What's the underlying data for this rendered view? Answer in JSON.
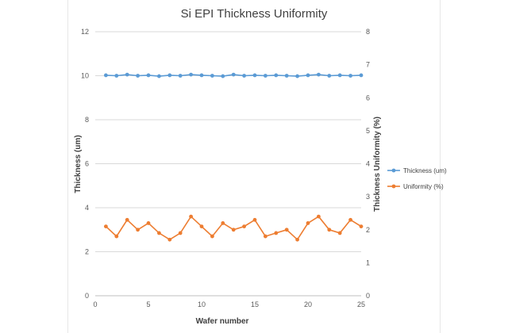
{
  "chart_data": {
    "type": "line",
    "title": "Si EPI Thickness Uniformity",
    "xlabel": "Wafer number",
    "ylabel": "Thickness (um)",
    "y2label": "Thickness Uniformity (%)",
    "xlim": [
      0,
      25
    ],
    "ylim": [
      0,
      12
    ],
    "y2lim": [
      0,
      8
    ],
    "xticks": [
      0,
      5,
      10,
      15,
      20,
      25
    ],
    "yticks": [
      0,
      2,
      4,
      6,
      8,
      10,
      12
    ],
    "y2ticks": [
      0,
      1,
      2,
      3,
      4,
      5,
      6,
      7,
      8
    ],
    "grid": "horizontal",
    "legend_position": "right",
    "x": [
      1,
      2,
      3,
      4,
      5,
      6,
      7,
      8,
      9,
      10,
      11,
      12,
      13,
      14,
      15,
      16,
      17,
      18,
      19,
      20,
      21,
      22,
      23,
      24,
      25
    ],
    "series": [
      {
        "name": "Thickness (um)",
        "axis": "left",
        "color": "#5b9bd5",
        "values": [
          10.02,
          10.0,
          10.05,
          10.0,
          10.02,
          9.98,
          10.02,
          10.0,
          10.05,
          10.02,
          10.0,
          9.98,
          10.05,
          10.0,
          10.02,
          10.0,
          10.02,
          10.0,
          9.98,
          10.02,
          10.05,
          10.0,
          10.02,
          10.0,
          10.02
        ]
      },
      {
        "name": "Uniformity (%)",
        "axis": "right",
        "color": "#ed7d31",
        "values": [
          2.1,
          1.8,
          2.3,
          2.0,
          2.2,
          1.9,
          1.7,
          1.9,
          2.4,
          2.1,
          1.8,
          2.2,
          2.0,
          2.1,
          2.3,
          1.8,
          1.9,
          2.0,
          1.7,
          2.2,
          2.4,
          2.0,
          1.9,
          2.3,
          2.1
        ]
      }
    ]
  }
}
